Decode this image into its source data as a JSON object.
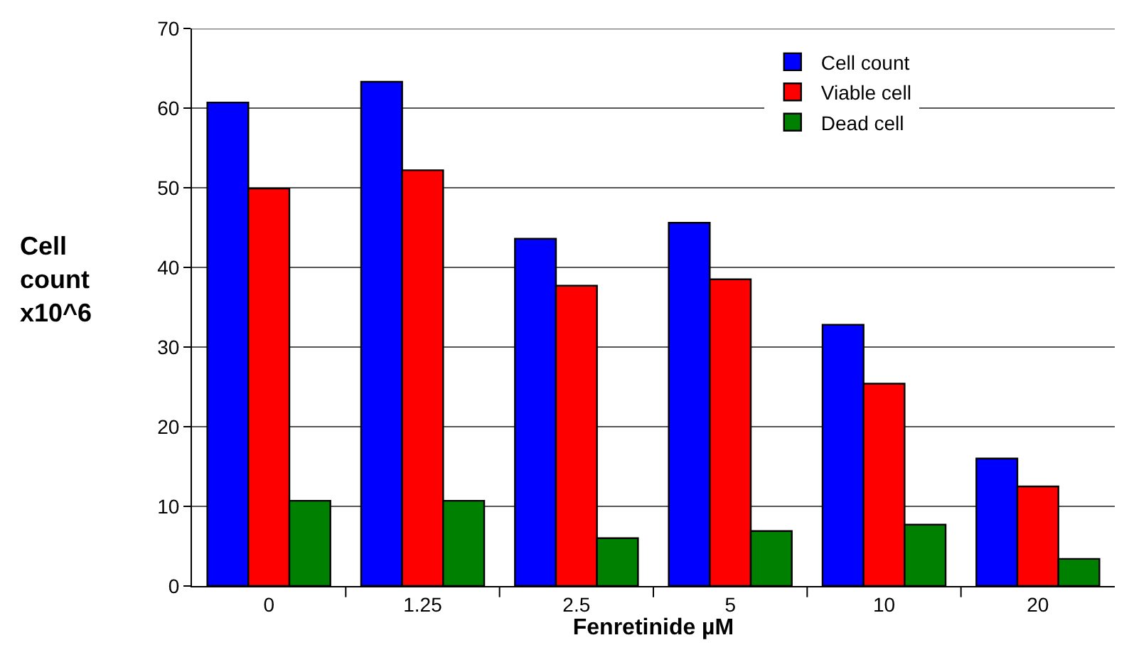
{
  "chart_data": {
    "type": "bar",
    "xlabel": "Fenretinide µM",
    "ylabel": "Cell count x10^6",
    "categories": [
      "0",
      "1.25",
      "2.5",
      "5",
      "10",
      "20"
    ],
    "series": [
      {
        "name": "Cell count",
        "color": "#0000ff",
        "values": [
          60.7,
          63.3,
          43.6,
          45.6,
          32.8,
          16.0
        ]
      },
      {
        "name": "Viable cell",
        "color": "#ff0000",
        "values": [
          49.9,
          52.2,
          37.7,
          38.5,
          25.4,
          12.5
        ]
      },
      {
        "name": "Dead cell",
        "color": "#008000",
        "values": [
          10.7,
          10.7,
          6.0,
          6.9,
          7.7,
          3.4
        ]
      }
    ],
    "ylim": [
      0,
      70
    ],
    "yticks": [
      0,
      10,
      20,
      30,
      40,
      50,
      60,
      70
    ],
    "grid": "y",
    "legend": "top right"
  }
}
